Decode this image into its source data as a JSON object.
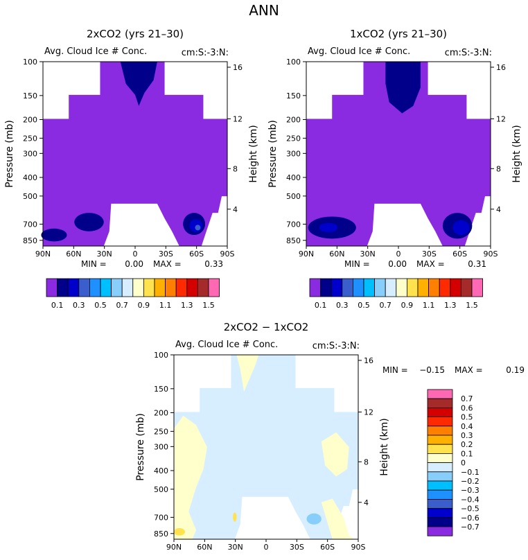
{
  "page": {
    "title": "ANN"
  },
  "colors": {
    "seq": [
      "#8a2be2",
      "#00008b",
      "#0000cd",
      "#3a5fcd",
      "#1e90ff",
      "#00bfff",
      "#87cefa",
      "#d6eeff",
      "#ffffcc",
      "#ffe24d",
      "#ffb000",
      "#ff8000",
      "#ff2a00",
      "#d40000",
      "#a52a2a",
      "#ff69b4"
    ],
    "diff": [
      "#8a2be2",
      "#00008b",
      "#0000cd",
      "#3a5fcd",
      "#1e90ff",
      "#00bfff",
      "#87cefa",
      "#d6eeff",
      "#ffffcc",
      "#ffe24d",
      "#ffb000",
      "#ff8000",
      "#ff2a00",
      "#d40000",
      "#a52a2a",
      "#ff69b4"
    ]
  },
  "chart_data": [
    {
      "type": "heatmap",
      "title": "2xCO2 (yrs 21–30)",
      "subtitle": "Avg. Cloud Ice # Conc.",
      "units": "cm:S:-3:N:",
      "xlabel": "",
      "ylabel": "Pressure (mb)",
      "ylabel_right": "Height (km)",
      "x_ticks": [
        "90N",
        "60N",
        "30N",
        "0",
        "30S",
        "60S",
        "90S"
      ],
      "y_ticks": [
        "100",
        "150",
        "200",
        "250",
        "300",
        "400",
        "500",
        "700",
        "850"
      ],
      "y_right_ticks": [
        "4",
        "8",
        "12",
        "16"
      ],
      "min_label": "MIN =",
      "min_value": "0.00",
      "max_label": "MAX =",
      "max_value": "0.33",
      "colorbar_labels": [
        "0.1",
        "0.3",
        "0.5",
        "0.7",
        "0.9",
        "1.1",
        "1.3",
        "1.5"
      ]
    },
    {
      "type": "heatmap",
      "title": "1xCO2 (yrs 21–30)",
      "subtitle": "Avg. Cloud Ice # Conc.",
      "units": "cm:S:-3:N:",
      "xlabel": "",
      "ylabel": "Pressure (mb)",
      "ylabel_right": "Height (km)",
      "x_ticks": [
        "90N",
        "60N",
        "30N",
        "0",
        "30S",
        "60S",
        "90S"
      ],
      "y_ticks": [
        "100",
        "150",
        "200",
        "250",
        "300",
        "400",
        "500",
        "700",
        "850"
      ],
      "y_right_ticks": [
        "4",
        "8",
        "12",
        "16"
      ],
      "min_label": "MIN =",
      "min_value": "0.00",
      "max_label": "MAX =",
      "max_value": "0.31",
      "colorbar_labels": [
        "0.1",
        "0.3",
        "0.5",
        "0.7",
        "0.9",
        "1.1",
        "1.3",
        "1.5"
      ]
    },
    {
      "type": "heatmap",
      "title": "2xCO2 − 1xCO2",
      "subtitle": "Avg. Cloud Ice # Conc.",
      "units": "cm:S:-3:N:",
      "xlabel": "",
      "ylabel": "Pressure (mb)",
      "ylabel_right": "Height (km)",
      "x_ticks": [
        "90N",
        "60N",
        "30N",
        "0",
        "30S",
        "60S",
        "90S"
      ],
      "y_ticks": [
        "100",
        "150",
        "200",
        "250",
        "300",
        "400",
        "500",
        "700",
        "850"
      ],
      "y_right_ticks": [
        "4",
        "8",
        "12",
        "16"
      ],
      "min_label": "MIN =",
      "min_value": "−0.15",
      "max_label": "MAX =",
      "max_value": "0.19",
      "colorbar_labels": [
        "0.7",
        "0.6",
        "0.5",
        "0.4",
        "0.3",
        "0.2",
        "0.1",
        "0",
        "−0.1",
        "−0.2",
        "−0.3",
        "−0.4",
        "−0.5",
        "−0.6",
        "−0.7"
      ]
    }
  ]
}
